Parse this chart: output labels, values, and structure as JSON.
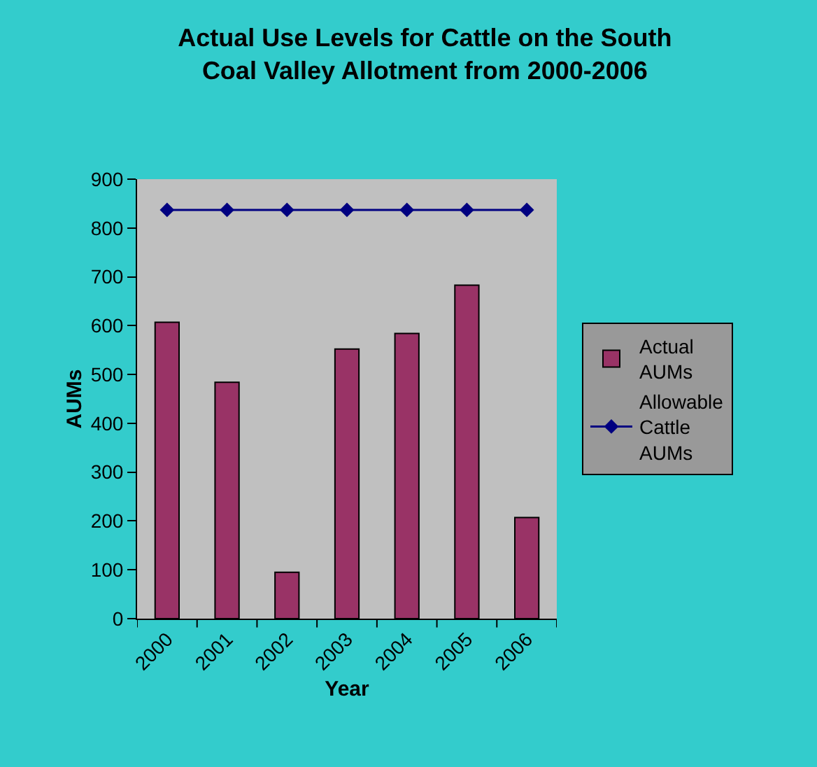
{
  "chart_data": {
    "type": "bar",
    "title": "Actual Use Levels for Cattle on the South Coal Valley Allotment from 2000-2006",
    "xlabel": "Year",
    "ylabel": "AUMs",
    "categories": [
      "2000",
      "2001",
      "2002",
      "2003",
      "2004",
      "2005",
      "2006"
    ],
    "series": [
      {
        "name": "Actual AUMs",
        "color": "#993366",
        "values": [
          607,
          484,
          95,
          552,
          584,
          683,
          207
        ]
      },
      {
        "name": "Allowable Cattle AUMs",
        "type": "line",
        "color": "#000080",
        "marker": "diamond",
        "values": [
          837,
          837,
          837,
          837,
          837,
          837,
          837
        ]
      }
    ],
    "ylim": [
      0,
      900
    ],
    "yticks": [
      0,
      100,
      200,
      300,
      400,
      500,
      600,
      700,
      800,
      900
    ],
    "grid": false,
    "legend": "right"
  }
}
